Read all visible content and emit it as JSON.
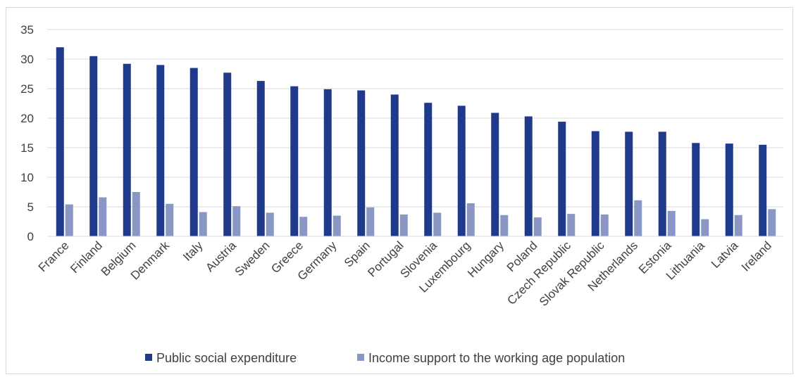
{
  "chart_data": {
    "type": "bar",
    "title": "",
    "xlabel": "",
    "ylabel": "",
    "ylim": [
      0,
      35
    ],
    "yticks": [
      0,
      5,
      10,
      15,
      20,
      25,
      30,
      35
    ],
    "grid": "horizontal",
    "legend_position": "bottom",
    "categories": [
      "France",
      "Finland",
      "Belgium",
      "Denmark",
      "Italy",
      "Austria",
      "Sweden",
      "Greece",
      "Germany",
      "Spain",
      "Portugal",
      "Slovenia",
      "Luxembourg",
      "Hungary",
      "Poland",
      "Czech Republic",
      "Slovak Republic",
      "Netherlands",
      "Estonia",
      "Lithuania",
      "Latvia",
      "Ireland"
    ],
    "series": [
      {
        "name": "Public social expenditure",
        "color": "#1f3a8a",
        "values": [
          32.0,
          30.5,
          29.2,
          29.0,
          28.5,
          27.7,
          26.3,
          25.4,
          24.9,
          24.7,
          24.0,
          22.6,
          22.1,
          20.9,
          20.3,
          19.4,
          17.8,
          17.7,
          17.7,
          15.8,
          15.7,
          15.5
        ]
      },
      {
        "name": "Income support to the working age population",
        "color": "#8a96c4",
        "values": [
          5.4,
          6.6,
          7.5,
          5.5,
          4.1,
          5.1,
          4.0,
          3.3,
          3.5,
          4.9,
          3.7,
          4.0,
          5.6,
          3.6,
          3.2,
          3.8,
          3.7,
          6.1,
          4.3,
          2.9,
          3.6,
          4.6
        ]
      }
    ]
  }
}
